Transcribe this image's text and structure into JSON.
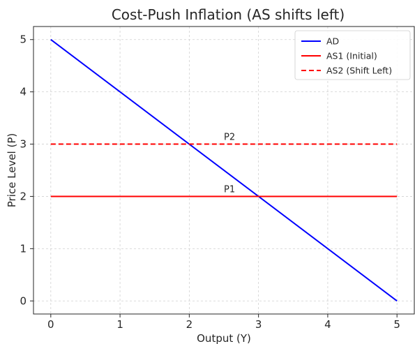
{
  "chart_data": {
    "type": "line",
    "title": "Cost-Push Inflation (AS shifts left)",
    "xlabel": "Output (Y)",
    "ylabel": "Price Level (P)",
    "xlim": [
      -0.25,
      5.25
    ],
    "ylim": [
      -0.25,
      5.25
    ],
    "xticks": [
      0,
      1,
      2,
      3,
      4,
      5
    ],
    "yticks": [
      0,
      1,
      2,
      3,
      4,
      5
    ],
    "grid": true,
    "legend_position": "top-right",
    "series": [
      {
        "name": "AD",
        "x": [
          0,
          5
        ],
        "y": [
          5,
          0
        ],
        "color": "#0000ff",
        "style": "solid"
      },
      {
        "name": "AS1 (Initial)",
        "x": [
          0,
          5
        ],
        "y": [
          2,
          2
        ],
        "color": "#ff0000",
        "style": "solid"
      },
      {
        "name": "AS2 (Shift Left)",
        "x": [
          0,
          5
        ],
        "y": [
          3,
          3
        ],
        "color": "#ff0000",
        "style": "dashed"
      }
    ],
    "annotations": [
      {
        "text": "P1",
        "x": 2.5,
        "y": 2
      },
      {
        "text": "P2",
        "x": 2.5,
        "y": 3
      }
    ]
  }
}
